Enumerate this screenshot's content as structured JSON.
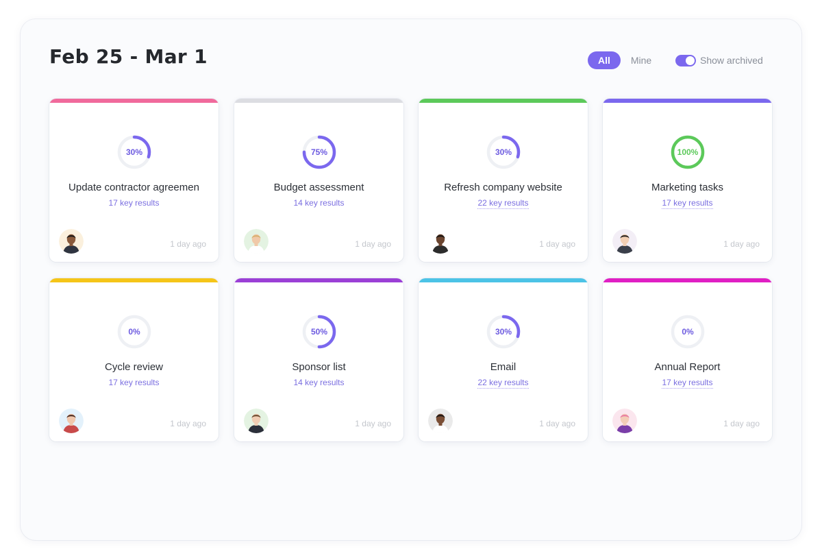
{
  "header": {
    "title": "Feb 25 - Mar 1",
    "filter_all": "All",
    "filter_mine": "Mine",
    "show_archived_label": "Show archived",
    "show_archived_on": true
  },
  "colors": {
    "accent": "#7b68ee",
    "ring_track": "#eef0f4",
    "complete": "#5cc95a"
  },
  "cards": [
    {
      "title": "Update contractor agreemen",
      "progress": 30,
      "progress_label": "30%",
      "key_results": "17 key results",
      "updated": "1 day ago",
      "bar_color": "#f06a9c",
      "ring_color": "#7b68ee",
      "avatar": {
        "skin": "#8a5a3b",
        "hair": "#1e1a17",
        "bg": "#fbf0dd",
        "shirt": "#2f3440"
      }
    },
    {
      "title": "Budget assessment",
      "progress": 75,
      "progress_label": "75%",
      "key_results": "14 key results",
      "updated": "1 day ago",
      "bar_color": "#dcdde2",
      "ring_color": "#7b68ee",
      "avatar": {
        "skin": "#f0c9a8",
        "hair": "#d8b070",
        "bg": "#e4f3e2",
        "shirt": "#ffffff"
      }
    },
    {
      "title": "Refresh company website",
      "progress": 30,
      "progress_label": "30%",
      "key_results": "22 key results",
      "updated": "1 day ago",
      "bar_color": "#5cc95a",
      "ring_color": "#7b68ee",
      "avatar": {
        "skin": "#6b4530",
        "hair": "#1a1512",
        "bg": "#ffffff",
        "shirt": "#2c2c2c"
      }
    },
    {
      "title": "Marketing tasks",
      "progress": 100,
      "progress_label": "100%",
      "key_results": "17 key results",
      "updated": "1 day ago",
      "bar_color": "#7b68ee",
      "ring_color": "#5cc95a",
      "avatar": {
        "skin": "#f2cfb4",
        "hair": "#2b2420",
        "bg": "#f3eef6",
        "shirt": "#3a3f4a"
      }
    },
    {
      "title": "Cycle review",
      "progress": 0,
      "progress_label": "0%",
      "key_results": "17 key results",
      "updated": "1 day ago",
      "bar_color": "#f5c518",
      "ring_color": "#7b68ee",
      "avatar": {
        "skin": "#f0c7ad",
        "hair": "#4a2a1f",
        "bg": "#e3f1fb",
        "shirt": "#c84a4a"
      }
    },
    {
      "title": "Sponsor list",
      "progress": 50,
      "progress_label": "50%",
      "key_results": "14 key results",
      "updated": "1 day ago",
      "bar_color": "#9b3fd6",
      "ring_color": "#7b68ee",
      "avatar": {
        "skin": "#f0cdb3",
        "hair": "#6b4a2e",
        "bg": "#e4f3e2",
        "shirt": "#2b2f3a"
      }
    },
    {
      "title": "Email",
      "progress": 30,
      "progress_label": "30%",
      "key_results": "22 key results",
      "updated": "1 day ago",
      "bar_color": "#4cc3e6",
      "ring_color": "#7b68ee",
      "avatar": {
        "skin": "#7a4e35",
        "hair": "#1a1512",
        "bg": "#eaeaea",
        "shirt": "#ffffff"
      }
    },
    {
      "title": "Annual Report",
      "progress": 0,
      "progress_label": "0%",
      "key_results": "17 key results",
      "updated": "1 day ago",
      "bar_color": "#e01fc4",
      "ring_color": "#7b68ee",
      "avatar": {
        "skin": "#f3cdb7",
        "hair": "#e97aa1",
        "bg": "#fbe6ee",
        "shirt": "#7a3ea8"
      }
    }
  ]
}
